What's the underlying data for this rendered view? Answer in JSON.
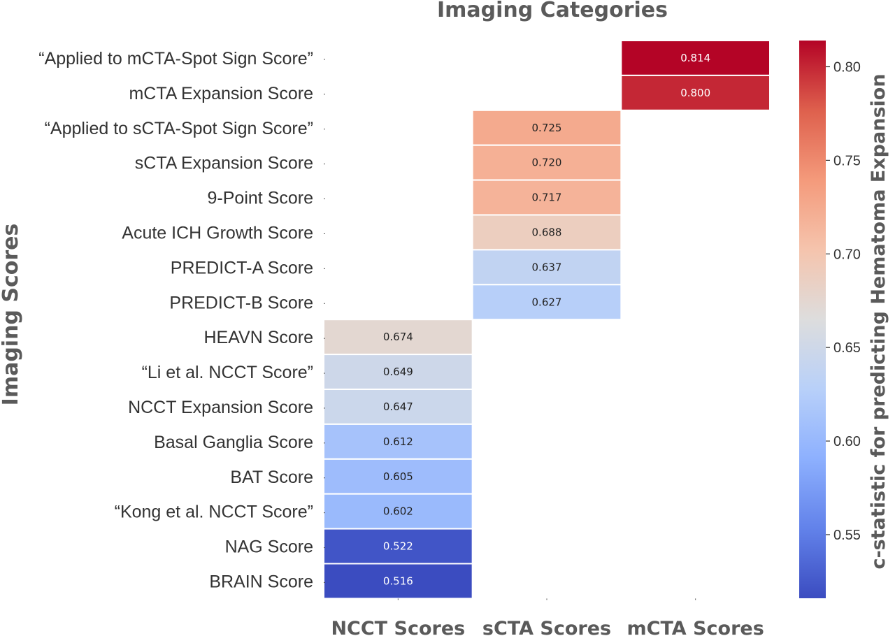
{
  "chart_data": {
    "type": "heatmap",
    "title": "Imaging Categories",
    "xlabel": "",
    "ylabel": "Imaging Scores",
    "colorbar_label": "c-statistic for predicting Hematoma Expansion",
    "colorbar_ticks": [
      "0.55",
      "0.60",
      "0.65",
      "0.70",
      "0.75",
      "0.80"
    ],
    "colorbar_range": [
      0.516,
      0.814
    ],
    "colormap": "coolwarm",
    "columns": [
      "NCCT Scores",
      "sCTA Scores",
      "mCTA Scores"
    ],
    "rows": [
      {
        "label": "“Applied to mCTA-Spot Sign Score”",
        "column": 2,
        "value": 0.814,
        "text": "0.814"
      },
      {
        "label": "mCTA Expansion Score",
        "column": 2,
        "value": 0.8,
        "text": "0.800"
      },
      {
        "label": "“Applied to sCTA-Spot Sign Score”",
        "column": 1,
        "value": 0.725,
        "text": "0.725"
      },
      {
        "label": "sCTA Expansion Score",
        "column": 1,
        "value": 0.72,
        "text": "0.720"
      },
      {
        "label": "9-Point Score",
        "column": 1,
        "value": 0.717,
        "text": "0.717"
      },
      {
        "label": "Acute ICH Growth Score",
        "column": 1,
        "value": 0.688,
        "text": "0.688"
      },
      {
        "label": "PREDICT-A Score",
        "column": 1,
        "value": 0.637,
        "text": "0.637"
      },
      {
        "label": "PREDICT-B Score",
        "column": 1,
        "value": 0.627,
        "text": "0.627"
      },
      {
        "label": "HEAVN Score",
        "column": 0,
        "value": 0.674,
        "text": "0.674"
      },
      {
        "label": "“Li et al. NCCT Score”",
        "column": 0,
        "value": 0.649,
        "text": "0.649"
      },
      {
        "label": "NCCT Expansion Score",
        "column": 0,
        "value": 0.647,
        "text": "0.647"
      },
      {
        "label": "Basal Ganglia Score",
        "column": 0,
        "value": 0.612,
        "text": "0.612"
      },
      {
        "label": "BAT Score",
        "column": 0,
        "value": 0.605,
        "text": "0.605"
      },
      {
        "label": "“Kong et al. NCCT Score”",
        "column": 0,
        "value": 0.602,
        "text": "0.602"
      },
      {
        "label": "NAG Score",
        "column": 0,
        "value": 0.522,
        "text": "0.522"
      },
      {
        "label": "BRAIN Score",
        "column": 0,
        "value": 0.516,
        "text": "0.516"
      }
    ]
  }
}
